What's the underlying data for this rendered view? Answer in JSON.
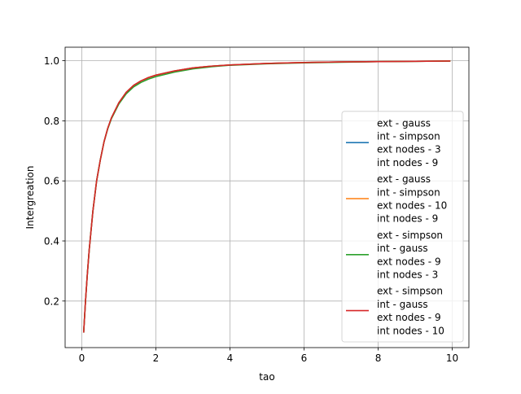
{
  "chart_data": {
    "type": "line",
    "title": "",
    "xlabel": "tao",
    "ylabel": "Intergreation",
    "xlim": [
      -0.45,
      10.45
    ],
    "ylim": [
      0.045,
      1.045
    ],
    "xticks": [
      0,
      2,
      4,
      6,
      8,
      10
    ],
    "yticks": [
      0.2,
      0.4,
      0.6,
      0.8,
      1.0
    ],
    "xtick_labels": [
      "0",
      "2",
      "4",
      "6",
      "8",
      "10"
    ],
    "ytick_labels": [
      "0.2",
      "0.4",
      "0.6",
      "0.8",
      "1.0"
    ],
    "grid": true,
    "legend_position": "lower-right",
    "x": [
      0.05,
      0.1,
      0.15,
      0.2,
      0.3,
      0.4,
      0.5,
      0.6,
      0.7,
      0.8,
      1.0,
      1.2,
      1.4,
      1.6,
      1.8,
      2.0,
      2.5,
      3.0,
      3.5,
      4.0,
      5.0,
      6.0,
      7.0,
      8.0,
      9.0,
      9.95
    ],
    "series": [
      {
        "name": [
          "ext - gauss",
          "int - simpson",
          "ext nodes - 3",
          "int nodes - 9"
        ],
        "color": "#1f77b4",
        "values": [
          0.095,
          0.2,
          0.29,
          0.37,
          0.5,
          0.6,
          0.67,
          0.73,
          0.775,
          0.81,
          0.86,
          0.895,
          0.918,
          0.933,
          0.944,
          0.952,
          0.966,
          0.976,
          0.982,
          0.986,
          0.991,
          0.994,
          0.996,
          0.997,
          0.998,
          0.999
        ]
      },
      {
        "name": [
          "ext - gauss",
          "int - simpson",
          "ext nodes - 10",
          "int nodes - 9"
        ],
        "color": "#ff7f0e",
        "values": [
          0.095,
          0.2,
          0.29,
          0.37,
          0.5,
          0.6,
          0.67,
          0.73,
          0.775,
          0.81,
          0.86,
          0.895,
          0.918,
          0.933,
          0.944,
          0.952,
          0.966,
          0.976,
          0.982,
          0.986,
          0.991,
          0.994,
          0.996,
          0.997,
          0.998,
          0.999
        ]
      },
      {
        "name": [
          "ext - simpson",
          "int - gauss",
          "ext nodes - 9",
          "int nodes - 3"
        ],
        "color": "#2ca02c",
        "values": [
          0.095,
          0.2,
          0.29,
          0.37,
          0.5,
          0.6,
          0.67,
          0.73,
          0.773,
          0.807,
          0.856,
          0.89,
          0.913,
          0.928,
          0.939,
          0.947,
          0.962,
          0.973,
          0.98,
          0.985,
          0.99,
          0.993,
          0.995,
          0.997,
          0.998,
          0.999
        ]
      },
      {
        "name": [
          "ext - simpson",
          "int - gauss",
          "ext nodes - 9",
          "int nodes - 10"
        ],
        "color": "#d62728",
        "values": [
          0.095,
          0.2,
          0.29,
          0.37,
          0.5,
          0.6,
          0.67,
          0.73,
          0.775,
          0.81,
          0.86,
          0.895,
          0.918,
          0.933,
          0.944,
          0.952,
          0.966,
          0.976,
          0.982,
          0.986,
          0.991,
          0.994,
          0.996,
          0.997,
          0.998,
          0.999
        ]
      }
    ]
  }
}
